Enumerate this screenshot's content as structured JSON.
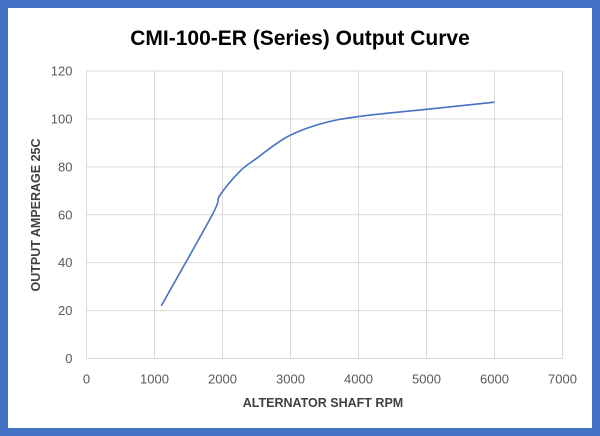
{
  "chart_data": {
    "type": "line",
    "title": "CMI-100-ER (Series) Output Curve",
    "xlabel": "ALTERNATOR SHAFT RPM",
    "ylabel": "OUTPUT AMPERAGE 25C",
    "xlim": [
      0,
      7000
    ],
    "ylim": [
      0,
      120
    ],
    "xticks": [
      0,
      1000,
      2000,
      3000,
      4000,
      5000,
      6000,
      7000
    ],
    "yticks": [
      0,
      20,
      40,
      60,
      80,
      100,
      120
    ],
    "grid": true,
    "legend": "none",
    "color": "#4472c4",
    "series": [
      {
        "name": "Output",
        "x": [
          1100,
          1850,
          1960,
          2250,
          2500,
          2950,
          3450,
          4000,
          5000,
          6000
        ],
        "y": [
          22,
          60,
          68,
          78,
          83.5,
          92.5,
          98,
          101,
          104,
          107
        ]
      }
    ]
  }
}
